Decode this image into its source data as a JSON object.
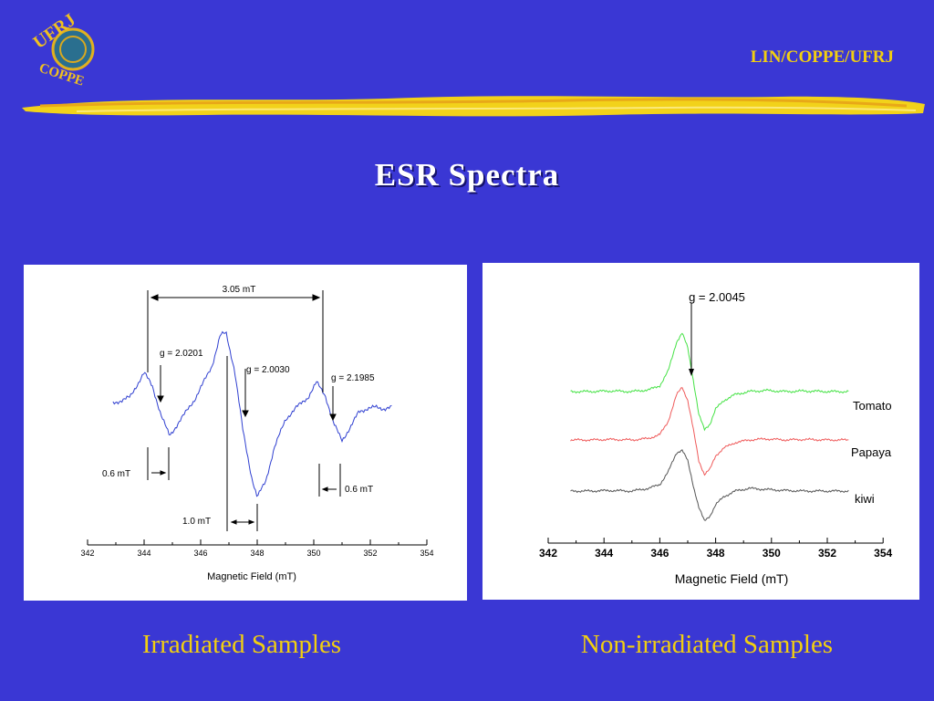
{
  "header": {
    "org": "LIN/COPPE/UFRJ",
    "logo_text_top": "UFRJ",
    "logo_text_bottom": "COPPE"
  },
  "title": "ESR  Spectra",
  "captions": {
    "left": "Irradiated Samples",
    "right": "Non-irradiated Samples"
  },
  "colors": {
    "background": "#3a37d4",
    "accent": "#f2cf10",
    "trace_blue": "#2f3fd0",
    "tomato": "#45e245",
    "papaya": "#ef5a5a",
    "kiwi": "#555555"
  },
  "chart_data": [
    {
      "type": "line",
      "xlabel": "Magnetic Field  (mT)",
      "ylabel": "",
      "xlim": [
        342,
        354
      ],
      "x_ticks": [
        342,
        344,
        346,
        348,
        350,
        352,
        354
      ],
      "grid": false,
      "series": [
        {
          "x": [
            342.9,
            343.2,
            343.5,
            343.8,
            344.0,
            344.3,
            344.6,
            344.9,
            345.2,
            345.5,
            345.8,
            346.1,
            346.4,
            346.7,
            346.9,
            347.2,
            347.5,
            347.8,
            348.0,
            348.3,
            348.6,
            349.0,
            349.4,
            349.8,
            350.1,
            350.4,
            350.7,
            351.0,
            351.3,
            351.6,
            351.9,
            352.2,
            352.5,
            352.8
          ],
          "values": [
            0.15,
            0.18,
            0.22,
            0.4,
            0.52,
            0.35,
            0.0,
            -0.25,
            -0.1,
            0.05,
            0.2,
            0.4,
            0.6,
            0.98,
            1.0,
            0.55,
            -0.2,
            -0.75,
            -1.0,
            -0.8,
            -0.4,
            -0.05,
            0.1,
            0.22,
            0.4,
            0.25,
            -0.1,
            -0.3,
            -0.15,
            0.05,
            0.08,
            0.1,
            0.08,
            0.1
          ]
        }
      ],
      "annotations": [
        "3.05  mT",
        "g = 2.0201",
        "g = 2.0030",
        "g = 2.1985",
        "0.6  mT",
        "0.6  mT",
        "1.0  mT"
      ]
    },
    {
      "type": "line",
      "xlabel": "Magnetic Field (mT)",
      "ylabel": "",
      "xlim": [
        342,
        354
      ],
      "x_ticks": [
        342,
        344,
        346,
        348,
        350,
        352,
        354
      ],
      "grid": false,
      "series": [
        {
          "name": "Tomato",
          "x": [
            342.8,
            343.5,
            344.2,
            345.0,
            345.6,
            346.0,
            346.3,
            346.6,
            346.8,
            347.0,
            347.2,
            347.4,
            347.6,
            347.8,
            348.0,
            348.3,
            348.7,
            349.2,
            349.8,
            350.5,
            351.2,
            352.0,
            352.8
          ],
          "values": [
            0.0,
            0.0,
            0.01,
            0.0,
            0.03,
            0.1,
            0.35,
            0.85,
            1.0,
            0.75,
            0.2,
            -0.4,
            -0.65,
            -0.55,
            -0.3,
            -0.15,
            -0.05,
            0.0,
            0.02,
            0.0,
            0.01,
            0.0,
            0.0
          ]
        },
        {
          "name": "Papaya",
          "x": [
            342.8,
            343.5,
            344.2,
            345.0,
            345.6,
            346.0,
            346.3,
            346.6,
            346.8,
            347.0,
            347.2,
            347.4,
            347.6,
            347.8,
            348.0,
            348.3,
            348.7,
            349.2,
            349.8,
            350.5,
            351.2,
            352.0,
            352.8
          ],
          "values": [
            0.0,
            0.0,
            0.01,
            0.0,
            0.03,
            0.1,
            0.35,
            0.85,
            1.0,
            0.75,
            0.2,
            -0.4,
            -0.65,
            -0.55,
            -0.3,
            -0.15,
            -0.05,
            0.0,
            0.02,
            0.0,
            0.01,
            0.0,
            0.0
          ]
        },
        {
          "name": "kiwi",
          "x": [
            342.8,
            343.5,
            344.2,
            345.0,
            345.6,
            346.0,
            346.3,
            346.6,
            346.8,
            347.0,
            347.2,
            347.4,
            347.6,
            347.8,
            348.0,
            348.3,
            348.7,
            349.2,
            349.8,
            350.5,
            351.2,
            352.0,
            352.8
          ],
          "values": [
            0.0,
            0.0,
            0.01,
            0.0,
            0.05,
            0.12,
            0.35,
            0.7,
            0.75,
            0.55,
            0.1,
            -0.3,
            -0.55,
            -0.45,
            -0.25,
            -0.1,
            0.0,
            0.05,
            0.03,
            0.01,
            0.0,
            0.0,
            0.0
          ]
        }
      ],
      "annotations": [
        "g = 2.0045"
      ]
    }
  ]
}
